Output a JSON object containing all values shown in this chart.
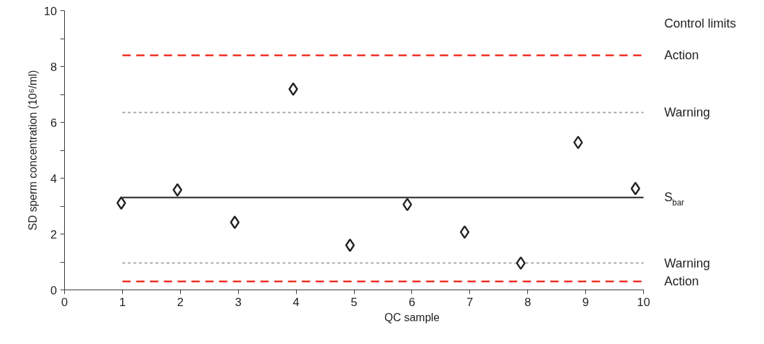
{
  "chart_data": {
    "type": "scatter",
    "xlabel": "QC sample",
    "ylabel": "SD sperm concentration (10⁶/ml)",
    "x": [
      0.98,
      1.95,
      2.94,
      3.95,
      4.93,
      5.92,
      6.91,
      7.88,
      8.87,
      9.86
    ],
    "series": [
      {
        "color": "#222222",
        "values": [
          3.11,
          3.58,
          2.42,
          7.19,
          1.6,
          3.06,
          2.07,
          0.96,
          5.28,
          3.63
        ]
      }
    ],
    "xlim": [
      0,
      10
    ],
    "xticks": [
      0,
      1,
      2,
      3,
      4,
      5,
      6,
      7,
      8,
      9,
      10
    ],
    "ylim": [
      0,
      10
    ],
    "yticks": [
      0,
      {
        "value": 1,
        "label": null
      },
      2,
      {
        "value": 3,
        "label": null
      },
      4,
      {
        "value": 5,
        "label": null
      },
      6,
      {
        "value": 7,
        "label": null
      },
      8,
      {
        "value": 9,
        "label": null
      },
      10
    ],
    "ref_lines": [
      {
        "axis": "y",
        "value": 8.4,
        "label": "Action",
        "color": "#ee2a1e",
        "line_style": "dashed"
      },
      {
        "axis": "y",
        "value": 6.35,
        "label": "Warning",
        "color": "#a6a6a6",
        "line_style": "dotted"
      },
      {
        "axis": "y",
        "value": 3.31,
        "label": "S$_{bar}$",
        "color": "#1a1a1a",
        "line_style": "solid"
      },
      {
        "axis": "y",
        "value": 0.96,
        "label": "Warning",
        "color": "#a6a6a6",
        "line_style": "dotted"
      },
      {
        "axis": "y",
        "value": 0.3,
        "label": "Action",
        "color": "#ee2a1e",
        "line_style": "dashed"
      }
    ],
    "annotations": [
      "Control limits"
    ],
    "marker": "diamond",
    "grid": false
  }
}
